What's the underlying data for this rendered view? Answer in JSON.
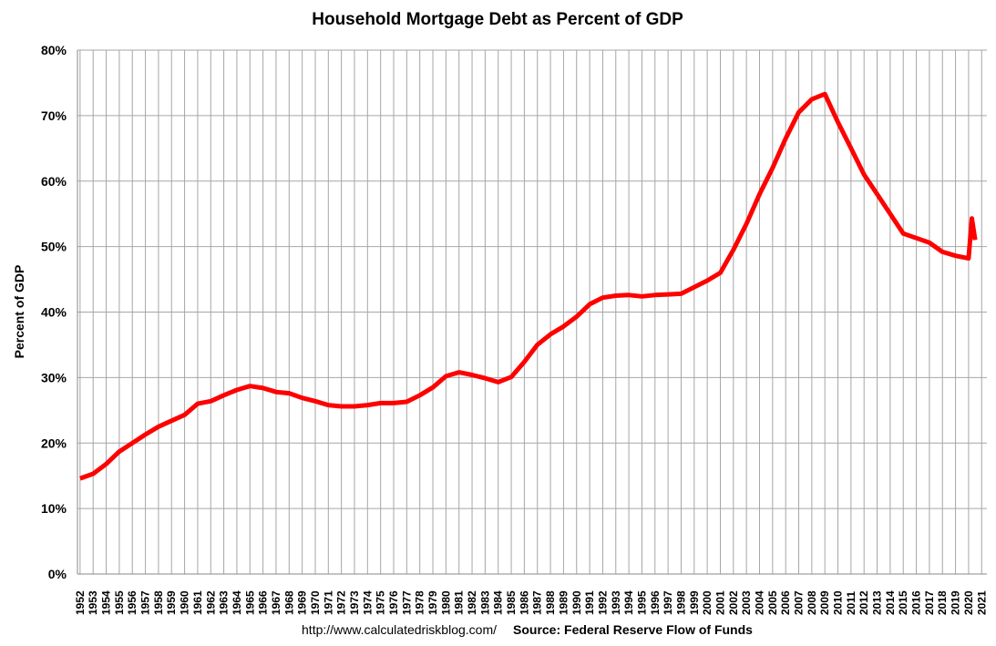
{
  "chart_data": {
    "type": "line",
    "title": "Household Mortgage Debt as Percent of GDP",
    "y_label": "Percent of GDP",
    "footer_url": "http://www.calculatedriskblog.com/",
    "footer_source": "Source: Federal Reserve Flow of Funds",
    "grid": true,
    "xlim": [
      1951.8,
      2021.4
    ],
    "xticks": [
      1952,
      1953,
      1954,
      1955,
      1956,
      1957,
      1958,
      1959,
      1960,
      1961,
      1962,
      1963,
      1964,
      1965,
      1966,
      1967,
      1968,
      1969,
      1970,
      1971,
      1972,
      1973,
      1974,
      1975,
      1976,
      1977,
      1978,
      1979,
      1980,
      1981,
      1982,
      1983,
      1984,
      1985,
      1986,
      1987,
      1988,
      1989,
      1990,
      1991,
      1992,
      1993,
      1994,
      1995,
      1996,
      1997,
      1998,
      1999,
      2000,
      2001,
      2002,
      2003,
      2004,
      2005,
      2006,
      2007,
      2008,
      2009,
      2010,
      2011,
      2012,
      2013,
      2014,
      2015,
      2016,
      2017,
      2018,
      2019,
      2020,
      2021
    ],
    "ylim": [
      0,
      80
    ],
    "yticks": [
      {
        "value": 0,
        "label": "0%"
      },
      {
        "value": 10,
        "label": "10%"
      },
      {
        "value": 20,
        "label": "20%"
      },
      {
        "value": 30,
        "label": "30%"
      },
      {
        "value": 40,
        "label": "40%"
      },
      {
        "value": 50,
        "label": "50%"
      },
      {
        "value": 60,
        "label": "60%"
      },
      {
        "value": 70,
        "label": "70%"
      },
      {
        "value": 80,
        "label": "80%"
      }
    ],
    "x": [
      1952,
      1953,
      1954,
      1955,
      1956,
      1957,
      1958,
      1959,
      1960,
      1961,
      1962,
      1963,
      1964,
      1965,
      1966,
      1967,
      1968,
      1969,
      1970,
      1971,
      1972,
      1973,
      1974,
      1975,
      1976,
      1977,
      1978,
      1979,
      1980,
      1981,
      1982,
      1983,
      1984,
      1985,
      1986,
      1987,
      1988,
      1989,
      1990,
      1991,
      1992,
      1993,
      1994,
      1995,
      1996,
      1997,
      1998,
      1999,
      2000,
      2001,
      2002,
      2003,
      2004,
      2005,
      2006,
      2007,
      2008,
      2009,
      2010,
      2011,
      2012,
      2013,
      2014,
      2015,
      2016,
      2017,
      2018,
      2019,
      2020,
      2020.25,
      2020.5
    ],
    "series": [
      {
        "name": "Percent of GDP",
        "color": "#ff0000",
        "values": [
          14.6,
          15.3,
          16.8,
          18.7,
          20.0,
          21.3,
          22.5,
          23.4,
          24.3,
          26.0,
          26.4,
          27.3,
          28.1,
          28.7,
          28.4,
          27.8,
          27.6,
          26.9,
          26.4,
          25.8,
          25.6,
          25.6,
          25.8,
          26.1,
          26.1,
          26.3,
          27.3,
          28.5,
          30.2,
          30.8,
          30.4,
          29.9,
          29.3,
          30.1,
          32.4,
          35.0,
          36.6,
          37.8,
          39.3,
          41.2,
          42.2,
          42.5,
          42.6,
          42.4,
          42.6,
          42.7,
          42.8,
          43.8,
          44.8,
          46.0,
          49.5,
          53.5,
          58.0,
          62.0,
          66.5,
          70.5,
          72.5,
          73.3,
          69.0,
          65.0,
          61.0,
          58.0,
          55.0,
          52.0,
          51.3,
          50.6,
          49.2,
          48.6,
          48.2,
          54.3,
          51.0
        ]
      }
    ]
  }
}
